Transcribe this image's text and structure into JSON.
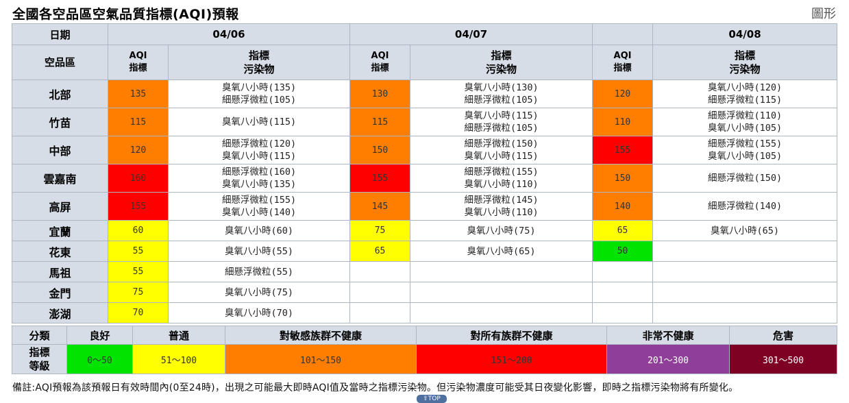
{
  "header": {
    "title": "全國各空品區空氣品質指標(AQI)預報",
    "view_link": "圖形"
  },
  "table": {
    "date_label": "日期",
    "region_label": "空品區",
    "aqi_header": [
      "AQI",
      "指標"
    ],
    "pollutant_header": [
      "指標",
      "污染物"
    ],
    "dates": [
      "04/06",
      "04/07",
      "04/08"
    ],
    "rows": [
      {
        "region": "北部",
        "days": [
          {
            "aqi": "135",
            "level": "usg",
            "pollutants": [
              "臭氧八小時(135)",
              "細懸浮微粒(105)"
            ]
          },
          {
            "aqi": "130",
            "level": "usg",
            "pollutants": [
              "臭氧八小時(130)",
              "細懸浮微粒(105)"
            ]
          },
          {
            "aqi": "120",
            "level": "usg",
            "pollutants": [
              "臭氧八小時(120)",
              "細懸浮微粒(115)"
            ]
          }
        ]
      },
      {
        "region": "竹苗",
        "days": [
          {
            "aqi": "115",
            "level": "usg",
            "pollutants": [
              "臭氧八小時(115)"
            ]
          },
          {
            "aqi": "115",
            "level": "usg",
            "pollutants": [
              "臭氧八小時(115)",
              "細懸浮微粒(105)"
            ]
          },
          {
            "aqi": "110",
            "level": "usg",
            "pollutants": [
              "細懸浮微粒(110)",
              "臭氧八小時(105)"
            ]
          }
        ]
      },
      {
        "region": "中部",
        "days": [
          {
            "aqi": "120",
            "level": "usg",
            "pollutants": [
              "細懸浮微粒(120)",
              "臭氧八小時(115)"
            ]
          },
          {
            "aqi": "150",
            "level": "usg",
            "pollutants": [
              "細懸浮微粒(150)",
              "臭氧八小時(115)"
            ]
          },
          {
            "aqi": "155",
            "level": "unh",
            "pollutants": [
              "細懸浮微粒(155)",
              "臭氧八小時(105)"
            ]
          }
        ]
      },
      {
        "region": "雲嘉南",
        "days": [
          {
            "aqi": "160",
            "level": "unh",
            "pollutants": [
              "細懸浮微粒(160)",
              "臭氧八小時(135)"
            ]
          },
          {
            "aqi": "155",
            "level": "unh",
            "pollutants": [
              "細懸浮微粒(155)",
              "臭氧八小時(110)"
            ]
          },
          {
            "aqi": "150",
            "level": "usg",
            "pollutants": [
              "細懸浮微粒(150)"
            ]
          }
        ]
      },
      {
        "region": "高屏",
        "days": [
          {
            "aqi": "155",
            "level": "unh",
            "pollutants": [
              "細懸浮微粒(155)",
              "臭氧八小時(140)"
            ]
          },
          {
            "aqi": "145",
            "level": "usg",
            "pollutants": [
              "細懸浮微粒(145)",
              "臭氧八小時(110)"
            ]
          },
          {
            "aqi": "140",
            "level": "usg",
            "pollutants": [
              "細懸浮微粒(140)"
            ]
          }
        ]
      },
      {
        "region": "宜蘭",
        "days": [
          {
            "aqi": "60",
            "level": "mod",
            "pollutants": [
              "臭氧八小時(60)"
            ]
          },
          {
            "aqi": "75",
            "level": "mod",
            "pollutants": [
              "臭氧八小時(75)"
            ]
          },
          {
            "aqi": "65",
            "level": "mod",
            "pollutants": [
              "臭氧八小時(65)"
            ]
          }
        ]
      },
      {
        "region": "花東",
        "days": [
          {
            "aqi": "55",
            "level": "mod",
            "pollutants": [
              "臭氧八小時(55)"
            ]
          },
          {
            "aqi": "65",
            "level": "mod",
            "pollutants": [
              "臭氧八小時(65)"
            ]
          },
          {
            "aqi": "50",
            "level": "good",
            "pollutants": []
          }
        ]
      },
      {
        "region": "馬祖",
        "days": [
          {
            "aqi": "55",
            "level": "mod",
            "pollutants": [
              "細懸浮微粒(55)"
            ]
          },
          {
            "aqi": "",
            "level": "",
            "pollutants": []
          },
          {
            "aqi": "",
            "level": "",
            "pollutants": []
          }
        ]
      },
      {
        "region": "金門",
        "days": [
          {
            "aqi": "75",
            "level": "mod",
            "pollutants": [
              "臭氧八小時(75)"
            ]
          },
          {
            "aqi": "",
            "level": "",
            "pollutants": []
          },
          {
            "aqi": "",
            "level": "",
            "pollutants": []
          }
        ]
      },
      {
        "region": "澎湖",
        "days": [
          {
            "aqi": "70",
            "level": "mod",
            "pollutants": [
              "臭氧八小時(70)"
            ]
          },
          {
            "aqi": "",
            "level": "",
            "pollutants": []
          },
          {
            "aqi": "",
            "level": "",
            "pollutants": []
          }
        ]
      }
    ]
  },
  "legend": {
    "category_label": "分類",
    "level_label": [
      "指標",
      "等級"
    ],
    "items": [
      {
        "name": "良好",
        "range": "0～50",
        "color": "#00e400"
      },
      {
        "name": "普通",
        "range": "51～100",
        "color": "#ffff00"
      },
      {
        "name": "對敏感族群不健康",
        "range": "101～150",
        "color": "#ff7e00"
      },
      {
        "name": "對所有族群不健康",
        "range": "151～200",
        "color": "#ff0000"
      },
      {
        "name": "非常不健康",
        "range": "201～300",
        "color": "#8f3f97"
      },
      {
        "name": "危害",
        "range": "301～500",
        "color": "#7e0023"
      }
    ]
  },
  "footnote": "備註:AQI預報為該預報日有效時間內(0至24時)，出現之可能最大即時AQI值及當時之指標污染物。但污染物濃度可能受其日夜變化影響，即時之指標污染物將有所變化。",
  "top_button": "TOP"
}
